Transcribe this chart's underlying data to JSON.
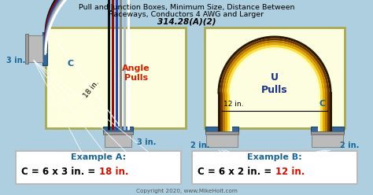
{
  "title_line1": "Pull and Junction Boxes, Minimum Size, Distance Between",
  "title_line2": "Raceways, Conductors 4 AWG and Larger",
  "title_line3": "314.28(A)(2)",
  "bg_color": "#aecfe0",
  "box_bg": "#fdfde0",
  "box_border": "#aaa855",
  "angle_label": "Angle\nPulls",
  "u_label": "U\nPulls",
  "angle_diagonal": "18 in.",
  "u_horizontal": "12 in.",
  "label_3in_top": "3 in.",
  "label_3in_right": "3 in.",
  "label_2in_left": "2 in.",
  "label_2in_right": "2 in.",
  "example_a_label": "Example A:",
  "example_a_formula": "C = 6 x 3 in. = ",
  "example_a_answer": "18 in.",
  "example_b_label": "Example B:",
  "example_b_formula": "C = 6 x 2 in. = ",
  "example_b_answer": "12 in.",
  "copyright": "Copyright 2020, www.MikeHolt.com",
  "wire_colors_angle": [
    "#111111",
    "#8b1010",
    "#2244aa",
    "#888888",
    "#aabbcc",
    "#ffffff"
  ],
  "wire_colors_u": [
    "#2a1800",
    "#6b3800",
    "#bb7700",
    "#ddaa00",
    "#ffdd44",
    "#ffffcc"
  ],
  "answer_color": "#cc1100",
  "label_color": "#1a6699",
  "angle_label_color": "#cc2200",
  "u_label_color": "#1a3388",
  "fitting_color": "#336699",
  "conduit_color": "#bbbbbb"
}
